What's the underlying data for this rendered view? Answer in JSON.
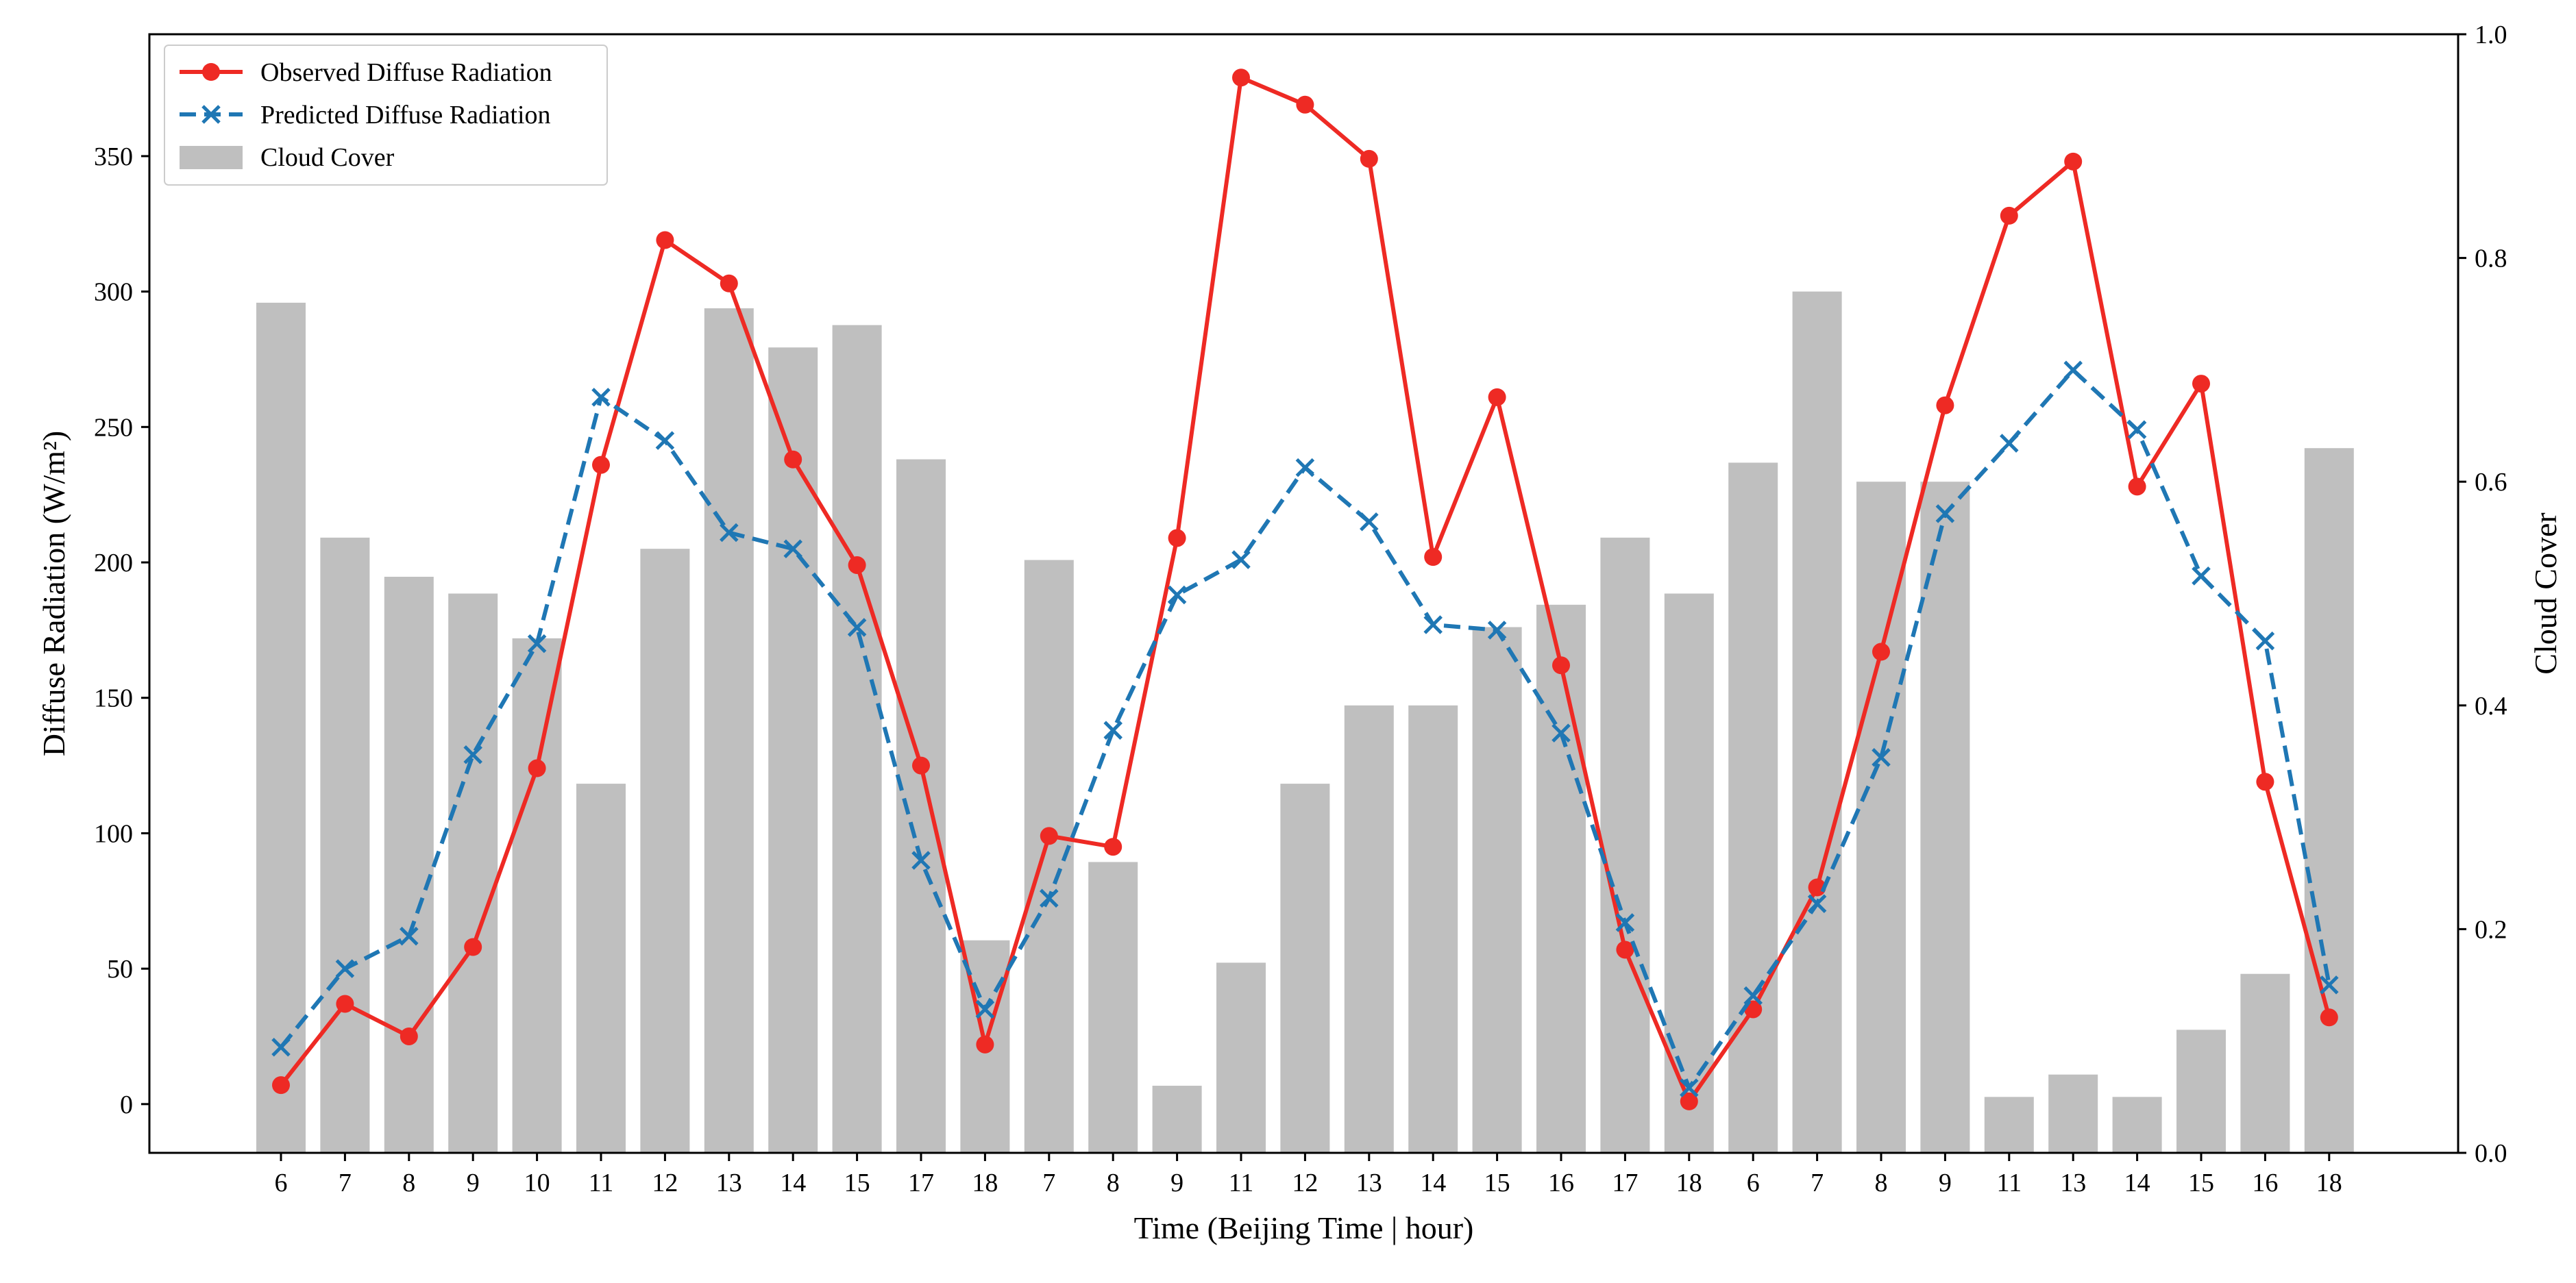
{
  "chart_data": {
    "type": "bar",
    "title": "",
    "xlabel": "Time (Beijing Time | hour)",
    "ylabel": "Diffuse Radiation (W/m²)",
    "y2label": "Cloud Cover",
    "categories": [
      "6",
      "7",
      "8",
      "9",
      "10",
      "11",
      "12",
      "13",
      "14",
      "15",
      "17",
      "18",
      "7",
      "8",
      "9",
      "11",
      "12",
      "13",
      "14",
      "15",
      "16",
      "17",
      "18",
      "6",
      "7",
      "8",
      "9",
      "11",
      "13",
      "14",
      "15",
      "16",
      "18"
    ],
    "ylim": [
      -18,
      395
    ],
    "y2lim": [
      0.0,
      1.0
    ],
    "yticks": [
      0,
      50,
      100,
      150,
      200,
      250,
      300,
      350
    ],
    "y2ticks": [
      "0.0",
      "0.2",
      "0.4",
      "0.6",
      "0.8",
      "1.0"
    ],
    "grid": false,
    "legend_position": "top-left",
    "series": [
      {
        "name": "Observed Diffuse Radiation",
        "kind": "line",
        "axis": "left",
        "color": "#ee2a24",
        "marker": "circle",
        "values": [
          7,
          37,
          25,
          58,
          124,
          236,
          319,
          303,
          238,
          199,
          125,
          22,
          99,
          95,
          209,
          379,
          369,
          349,
          202,
          261,
          162,
          57,
          1,
          35,
          80,
          167,
          258,
          328,
          348,
          228,
          266,
          119,
          32
        ]
      },
      {
        "name": "Predicted Diffuse Radiation",
        "kind": "line",
        "axis": "left",
        "color": "#1f77b4",
        "marker": "x",
        "dash": "dashed",
        "values": [
          21,
          50,
          62,
          129,
          170,
          261,
          245,
          211,
          205,
          176,
          90,
          35,
          76,
          138,
          188,
          201,
          235,
          215,
          177,
          175,
          137,
          67,
          6,
          40,
          74,
          128,
          218,
          244,
          271,
          249,
          195,
          171,
          44
        ]
      },
      {
        "name": "Cloud Cover",
        "kind": "bar",
        "axis": "right",
        "color": "#bfbfbf",
        "values": [
          0.76,
          0.55,
          0.515,
          0.5,
          0.46,
          0.33,
          0.54,
          0.755,
          0.72,
          0.74,
          0.62,
          0.19,
          0.53,
          0.26,
          0.06,
          0.17,
          0.33,
          0.4,
          0.4,
          0.47,
          0.49,
          0.55,
          0.5,
          0.617,
          0.77,
          0.6,
          0.6,
          0.05,
          0.07,
          0.05,
          0.11,
          0.16,
          0.63
        ]
      }
    ]
  }
}
